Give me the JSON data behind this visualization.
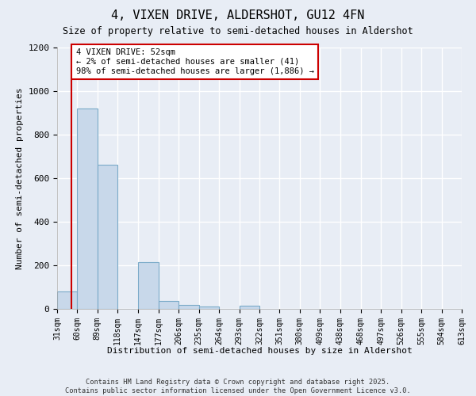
{
  "title": "4, VIXEN DRIVE, ALDERSHOT, GU12 4FN",
  "subtitle": "Size of property relative to semi-detached houses in Aldershot",
  "xlabel": "Distribution of semi-detached houses by size in Aldershot",
  "ylabel": "Number of semi-detached properties",
  "bar_color": "#c8d8ea",
  "bar_edge_color": "#7aaac8",
  "vline_color": "#cc0000",
  "vline_x": 52,
  "annotation_text": "4 VIXEN DRIVE: 52sqm\n← 2% of semi-detached houses are smaller (41)\n98% of semi-detached houses are larger (1,886) →",
  "bin_edges": [
    31,
    60,
    89,
    118,
    147,
    177,
    206,
    235,
    264,
    293,
    322,
    351,
    380,
    409,
    438,
    468,
    497,
    526,
    555,
    584,
    613
  ],
  "bar_heights": [
    80,
    920,
    660,
    0,
    215,
    35,
    20,
    12,
    0,
    15,
    0,
    0,
    0,
    0,
    0,
    0,
    0,
    0,
    0,
    0
  ],
  "ylim": [
    0,
    1200
  ],
  "yticks": [
    0,
    200,
    400,
    600,
    800,
    1000,
    1200
  ],
  "background_color": "#e8edf5",
  "grid_color": "#ffffff",
  "footer_text": "Contains HM Land Registry data © Crown copyright and database right 2025.\nContains public sector information licensed under the Open Government Licence v3.0.",
  "annotation_box_color": "#ffffff",
  "annotation_box_edge": "#cc0000",
  "fig_width": 6.0,
  "fig_height": 5.0,
  "dpi": 100
}
